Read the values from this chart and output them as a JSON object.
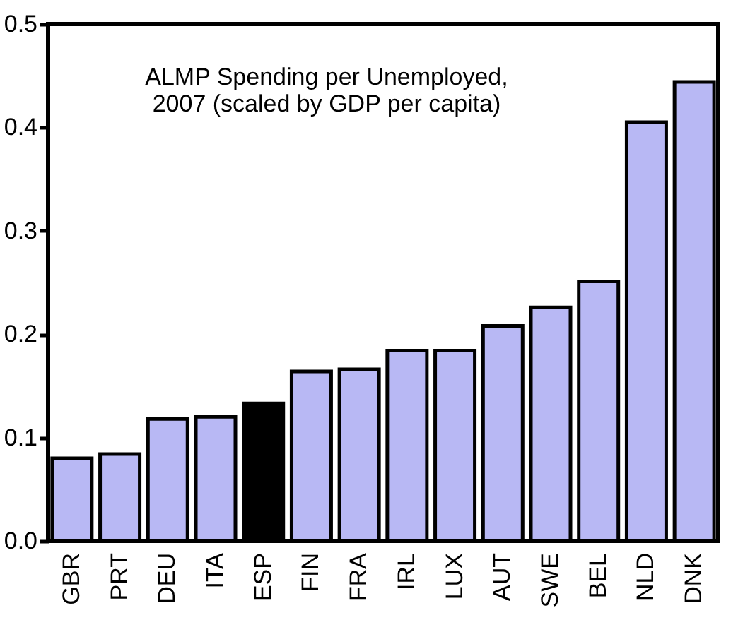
{
  "chart_data": {
    "type": "bar",
    "title": "ALMP Spending per Unemployed,\n2007 (scaled by GDP per capita)",
    "categories": [
      "GBR",
      "PRT",
      "DEU",
      "ITA",
      "ESP",
      "FIN",
      "FRA",
      "IRL",
      "LUX",
      "AUT",
      "SWE",
      "BEL",
      "NLD",
      "DNK"
    ],
    "values": [
      0.08,
      0.084,
      0.118,
      0.12,
      0.133,
      0.164,
      0.166,
      0.184,
      0.184,
      0.208,
      0.226,
      0.251,
      0.405,
      0.444
    ],
    "colors": [
      "#b8b8f4",
      "#b8b8f4",
      "#b8b8f4",
      "#b8b8f4",
      "#000000",
      "#b8b8f4",
      "#b8b8f4",
      "#b8b8f4",
      "#b8b8f4",
      "#b8b8f4",
      "#b8b8f4",
      "#b8b8f4",
      "#b8b8f4",
      "#b8b8f4"
    ],
    "ylim": [
      0,
      0.5
    ],
    "yticks": [
      {
        "value": 0,
        "label": "0.0"
      },
      0.1,
      0.2,
      0.3,
      0.4,
      0.5
    ],
    "grid": false
  }
}
